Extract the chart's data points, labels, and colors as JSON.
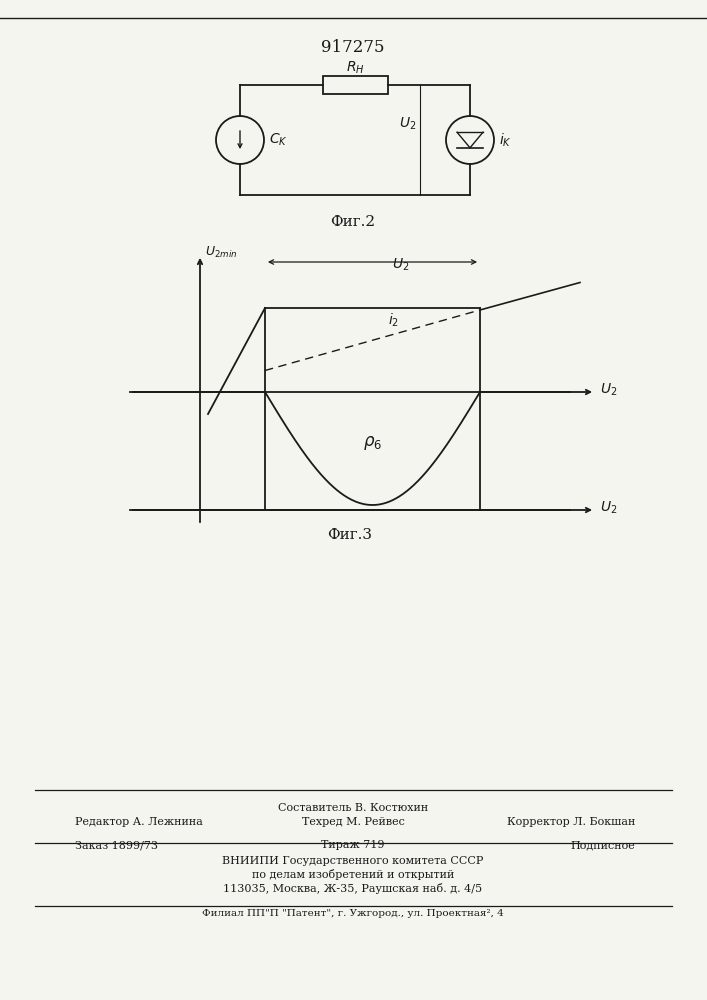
{
  "title": "917275",
  "bg_color": "#f5f5f0",
  "footer": {
    "line1_center": "Составитель В. Костюхин",
    "line2_left": "Редактор А. Лежнина",
    "line2_center": "Техред М. Рейвес",
    "line2_right": "Корректор Л. Бокшан",
    "line3_left": "Заказ 1899/73",
    "line3_center": "Тираж 719",
    "line3_right": "Подписное",
    "line4": "ВНИИПИ Государственного комитета СССР",
    "line5": "по делам изобретений и открытий",
    "line6": "113035, Москва, Ж-35, Раушская наб. д. 4/5",
    "line7": "Филиал ПП\"П \"Патент\", г. Ужгород., ул. Проектная², 4"
  }
}
